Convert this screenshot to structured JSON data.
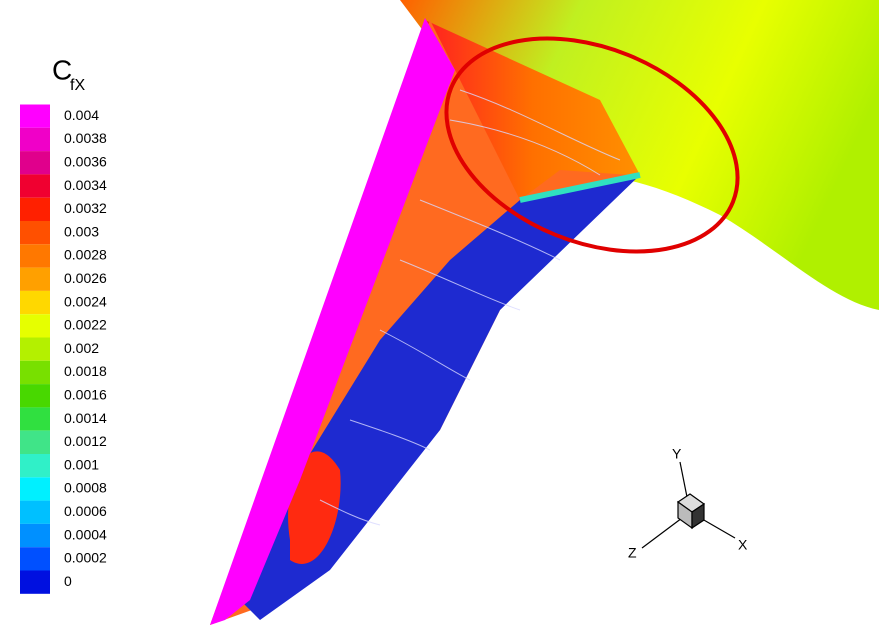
{
  "legend": {
    "symbol": "C",
    "subscript": "fX",
    "levels": [
      0.004,
      0.0038,
      0.0036,
      0.0034,
      0.0032,
      0.003,
      0.0028,
      0.0026,
      0.0024,
      0.0022,
      0.002,
      0.0018,
      0.0016,
      0.0014,
      0.0012,
      0.001,
      0.0008,
      0.0006,
      0.0004,
      0.0002,
      0
    ],
    "colors": [
      "#ff00ff",
      "#f000c8",
      "#e0008c",
      "#f00030",
      "#ff2000",
      "#ff5000",
      "#ff7800",
      "#ffa000",
      "#ffd800",
      "#e6ff00",
      "#b4f000",
      "#78e000",
      "#48d800",
      "#30e040",
      "#40e488",
      "#30f0c8",
      "#00f0ff",
      "#00c0ff",
      "#0090ff",
      "#0050ff",
      "#0010e0"
    ]
  },
  "axes": {
    "x": "X",
    "y": "Y",
    "z": "Z"
  }
}
